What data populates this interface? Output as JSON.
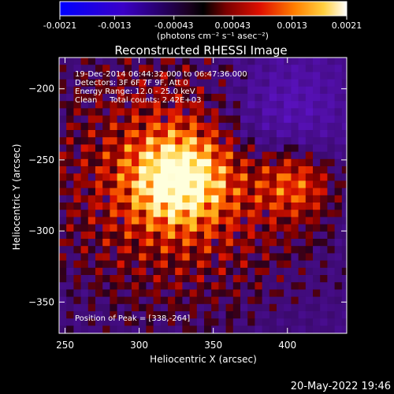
{
  "chart_data": {
    "type": "heatmap",
    "title": "Reconstructed RHESSI Image",
    "xlabel": "Heliocentric X (arcsec)",
    "ylabel": "Heliocentric Y (arcsec)",
    "xlim": [
      246,
      440
    ],
    "ylim": [
      -372,
      -178
    ],
    "x_ticks": [
      250,
      300,
      350,
      400
    ],
    "y_ticks": [
      -200,
      -250,
      -300,
      -350
    ],
    "colormap": "hot-with-blue-negative",
    "peak": {
      "x": 338,
      "y": -264
    },
    "colorbar": {
      "vmin": -0.0021,
      "vmax": 0.0021,
      "ticks": [
        {
          "value": -0.0021,
          "label": "-0.0021"
        },
        {
          "value": -0.0013,
          "label": "-0.0013"
        },
        {
          "value": -0.00043,
          "label": "-0.00043"
        },
        {
          "value": 0.00043,
          "label": "0.00043"
        },
        {
          "value": 0.0013,
          "label": "0.0013"
        },
        {
          "value": 0.0021,
          "label": "0.0021"
        }
      ],
      "unit_label": "(photons cm⁻² s⁻¹ asec⁻²)"
    },
    "annotations": [
      "19-Dec-2014 06:44:32.000 to 06:47:36.000",
      "Detectors: 3F 6F 7F 9F, Att 0",
      "Energy Range: 12.0 - 25.0 keV",
      "Clean     Total counts: 2.42E+03"
    ],
    "peak_label": "Position of Peak = [338,-264]"
  },
  "footer": {
    "timestamp": "20-May-2022 19:46"
  }
}
